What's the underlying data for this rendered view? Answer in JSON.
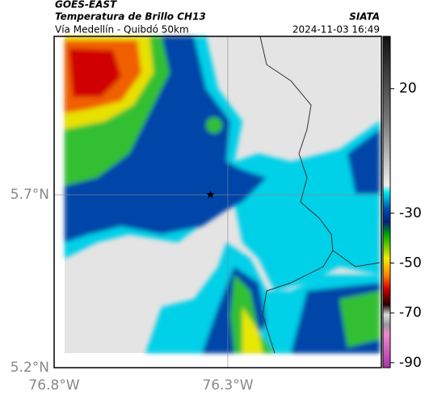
{
  "chart_data": {
    "type": "map",
    "title": "GOES-EAST",
    "subtitle": "Temperatura de Brillo CH13",
    "source": "SIATA",
    "route": "Vía Medellín - Quibdó 50km",
    "timestamp": "2024-11-03 16:49",
    "xlim": [
      -76.8,
      -75.858
    ],
    "ylim": [
      5.2,
      6.158
    ],
    "xticks": [
      {
        "value": -76.8,
        "label": "76.8°W"
      },
      {
        "value": -76.3,
        "label": "76.3°W"
      }
    ],
    "yticks": [
      {
        "value": 5.7,
        "label": "5.7°N"
      },
      {
        "value": 5.2,
        "label": "5.2°N"
      }
    ],
    "marker": {
      "x": -76.35,
      "y": 5.7
    },
    "colorbar": {
      "lim": [
        -92,
        41
      ],
      "ticks": [
        20,
        -30,
        -50,
        -70,
        -90
      ]
    }
  }
}
